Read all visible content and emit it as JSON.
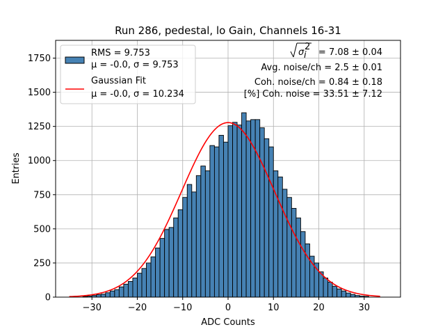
{
  "chart_data": {
    "type": "bar",
    "title": "Run 286, pedestal, lo Gain, Channels 16-31",
    "xlabel": "ADC Counts",
    "ylabel": "Entries",
    "xlim": [
      -38,
      38
    ],
    "ylim": [
      0,
      1880
    ],
    "grid": true,
    "xticks": [
      -30,
      -20,
      -10,
      0,
      10,
      20,
      30
    ],
    "xtick_labels": [
      "−30",
      "−20",
      "−10",
      "0",
      "10",
      "20",
      "30"
    ],
    "yticks": [
      0,
      250,
      500,
      750,
      1000,
      1250,
      1500,
      1750
    ],
    "ytick_labels": [
      "0",
      "250",
      "500",
      "750",
      "1000",
      "1250",
      "1500",
      "1750"
    ],
    "histogram": {
      "name": "RMS = 9.753",
      "color": "#4682b4",
      "bin_width": 1,
      "bin_starts": [
        -32,
        -31,
        -30,
        -29,
        -28,
        -27,
        -26,
        -25,
        -24,
        -23,
        -22,
        -21,
        -20,
        -19,
        -18,
        -17,
        -16,
        -15,
        -14,
        -13,
        -12,
        -11,
        -10,
        -9,
        -8,
        -7,
        -6,
        -5,
        -4,
        -3,
        -2,
        -1,
        0,
        1,
        2,
        3,
        4,
        5,
        6,
        7,
        8,
        9,
        10,
        11,
        12,
        13,
        14,
        15,
        16,
        17,
        18,
        19,
        20,
        21,
        22,
        23,
        24,
        25,
        26,
        27,
        28,
        29,
        30
      ],
      "values": [
        5,
        8,
        12,
        18,
        22,
        32,
        45,
        55,
        75,
        95,
        115,
        140,
        175,
        210,
        250,
        295,
        360,
        430,
        495,
        510,
        580,
        640,
        730,
        825,
        770,
        890,
        960,
        925,
        1110,
        1100,
        1185,
        1135,
        1255,
        1280,
        1260,
        1350,
        1290,
        1300,
        1300,
        1240,
        1160,
        1100,
        925,
        880,
        790,
        730,
        650,
        580,
        480,
        390,
        300,
        250,
        185,
        140,
        110,
        80,
        60,
        45,
        30,
        20,
        12,
        8,
        6
      ]
    },
    "fit": {
      "name": "Gaussian Fit",
      "color": "#ff0000",
      "mu": 0.0,
      "sigma": 10.234,
      "amplitude": 1278,
      "x_range": [
        -35,
        33.5
      ]
    },
    "legend": {
      "placement": "upper-left",
      "entries": [
        {
          "label": "RMS = 9.753",
          "sublabel": "μ = -0.0, σ = 9.753",
          "kind": "patch"
        },
        {
          "label": "Gaussian Fit",
          "sublabel": "μ = -0.0, σ = 10.234",
          "kind": "line"
        }
      ]
    },
    "annotations": {
      "sigma_prefix": "σ",
      "sigma_sub": "i",
      "sigma_sup": "2",
      "sigma_value": " = 7.08 ± 0.04",
      "avg_noise": "Avg. noise/ch = 2.5 ± 0.01",
      "coh_noise": "Coh. noise/ch = 0.84 ± 0.18",
      "pct_coh_noise": "[%] Coh. noise = 33.51 ± 7.12"
    }
  }
}
